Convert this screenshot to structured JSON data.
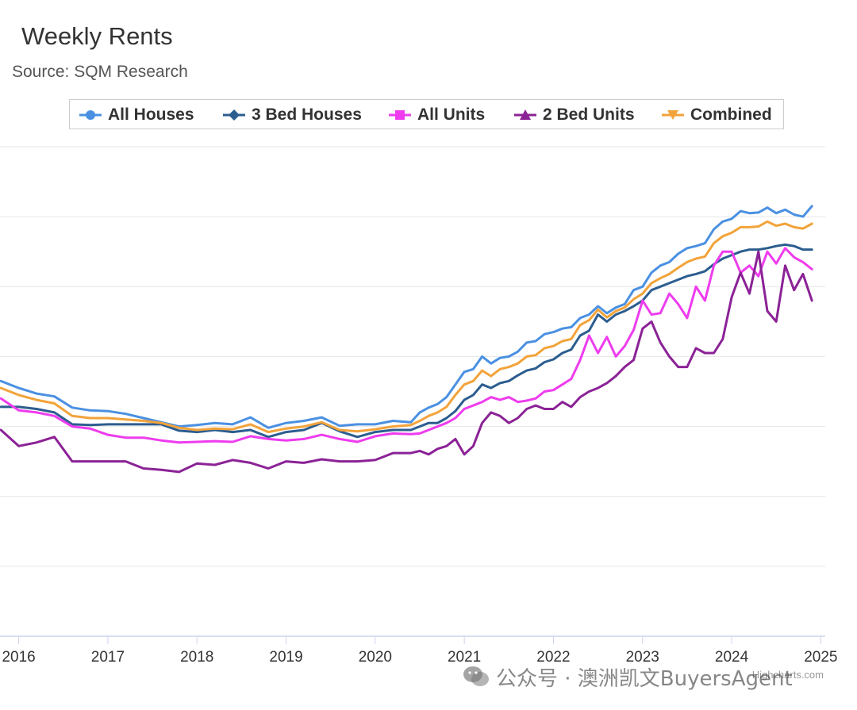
{
  "title": "Weekly Rents",
  "subtitle": "Source: SQM Research",
  "credits": "Highcharts.com",
  "watermark": "公众号 · 澳洲凯文BuyersAgent",
  "chart_data": {
    "type": "line",
    "title": "Weekly Rents",
    "subtitle": "Source: SQM Research",
    "x_ticks": [
      "2016",
      "2017",
      "2018",
      "2019",
      "2020",
      "2021",
      "2022",
      "2023",
      "2024",
      "2025"
    ],
    "x_range": [
      2015.79,
      2025.05
    ],
    "y_range": [
      0,
      7
    ],
    "ytick_count": 8,
    "grid": true,
    "legend_position": "top",
    "series": [
      {
        "name": "All Houses",
        "color": "#4a90e2",
        "marker": "circle",
        "x": [
          2015.8,
          2016.0,
          2016.2,
          2016.4,
          2016.6,
          2016.8,
          2017.0,
          2017.2,
          2017.4,
          2017.6,
          2017.8,
          2018.0,
          2018.2,
          2018.4,
          2018.6,
          2018.8,
          2019.0,
          2019.2,
          2019.4,
          2019.6,
          2019.8,
          2020.0,
          2020.2,
          2020.4,
          2020.5,
          2020.6,
          2020.7,
          2020.8,
          2020.9,
          2021.0,
          2021.1,
          2021.2,
          2021.3,
          2021.4,
          2021.5,
          2021.6,
          2021.7,
          2021.8,
          2021.9,
          2022.0,
          2022.1,
          2022.2,
          2022.3,
          2022.4,
          2022.5,
          2022.6,
          2022.7,
          2022.8,
          2022.9,
          2023.0,
          2023.1,
          2023.2,
          2023.3,
          2023.4,
          2023.5,
          2023.6,
          2023.7,
          2023.8,
          2023.9,
          2024.0,
          2024.1,
          2024.2,
          2024.3,
          2024.4,
          2024.5,
          2024.6,
          2024.7,
          2024.8,
          2024.9
        ],
        "y": [
          3.65,
          3.55,
          3.47,
          3.43,
          3.27,
          3.23,
          3.22,
          3.18,
          3.12,
          3.06,
          3.0,
          3.02,
          3.05,
          3.03,
          3.13,
          2.98,
          3.05,
          3.08,
          3.13,
          3.01,
          3.03,
          3.03,
          3.08,
          3.06,
          3.2,
          3.27,
          3.32,
          3.42,
          3.6,
          3.78,
          3.82,
          4.0,
          3.9,
          3.98,
          4.0,
          4.07,
          4.2,
          4.22,
          4.32,
          4.35,
          4.4,
          4.42,
          4.55,
          4.6,
          4.72,
          4.62,
          4.7,
          4.75,
          4.95,
          5.0,
          5.2,
          5.3,
          5.35,
          5.47,
          5.55,
          5.58,
          5.62,
          5.82,
          5.93,
          5.97,
          6.08,
          6.05,
          6.06,
          6.13,
          6.05,
          6.1,
          6.03,
          6.0,
          6.15
        ]
      },
      {
        "name": "3 Bed Houses",
        "color": "#2c5d8f",
        "marker": "diamond",
        "x": [
          2015.8,
          2016.0,
          2016.2,
          2016.4,
          2016.6,
          2016.8,
          2017.0,
          2017.2,
          2017.4,
          2017.6,
          2017.8,
          2018.0,
          2018.2,
          2018.4,
          2018.6,
          2018.8,
          2019.0,
          2019.2,
          2019.4,
          2019.6,
          2019.8,
          2020.0,
          2020.2,
          2020.4,
          2020.5,
          2020.6,
          2020.7,
          2020.8,
          2020.9,
          2021.0,
          2021.1,
          2021.2,
          2021.3,
          2021.4,
          2021.5,
          2021.6,
          2021.7,
          2021.8,
          2021.9,
          2022.0,
          2022.1,
          2022.2,
          2022.3,
          2022.4,
          2022.5,
          2022.6,
          2022.7,
          2022.8,
          2022.9,
          2023.0,
          2023.1,
          2023.2,
          2023.3,
          2023.4,
          2023.5,
          2023.6,
          2023.7,
          2023.8,
          2023.9,
          2024.0,
          2024.1,
          2024.2,
          2024.3,
          2024.4,
          2024.5,
          2024.6,
          2024.7,
          2024.8,
          2024.9
        ],
        "y": [
          3.28,
          3.28,
          3.25,
          3.2,
          3.03,
          3.02,
          3.03,
          3.03,
          3.03,
          3.03,
          2.94,
          2.92,
          2.95,
          2.92,
          2.95,
          2.85,
          2.92,
          2.95,
          3.05,
          2.93,
          2.85,
          2.92,
          2.95,
          2.95,
          3.0,
          3.05,
          3.05,
          3.12,
          3.22,
          3.38,
          3.45,
          3.6,
          3.55,
          3.62,
          3.65,
          3.73,
          3.8,
          3.83,
          3.92,
          3.96,
          4.05,
          4.1,
          4.3,
          4.37,
          4.6,
          4.5,
          4.6,
          4.65,
          4.72,
          4.8,
          4.95,
          5.0,
          5.05,
          5.1,
          5.15,
          5.18,
          5.22,
          5.32,
          5.4,
          5.45,
          5.5,
          5.53,
          5.53,
          5.55,
          5.58,
          5.6,
          5.58,
          5.53,
          5.53
        ]
      },
      {
        "name": "All Units",
        "color": "#ee3cee",
        "marker": "square",
        "x": [
          2015.8,
          2016.0,
          2016.2,
          2016.4,
          2016.6,
          2016.8,
          2017.0,
          2017.2,
          2017.4,
          2017.6,
          2017.8,
          2018.0,
          2018.2,
          2018.4,
          2018.6,
          2018.8,
          2019.0,
          2019.2,
          2019.4,
          2019.6,
          2019.8,
          2020.0,
          2020.2,
          2020.4,
          2020.5,
          2020.6,
          2020.7,
          2020.8,
          2020.9,
          2021.0,
          2021.1,
          2021.2,
          2021.3,
          2021.4,
          2021.5,
          2021.6,
          2021.7,
          2021.8,
          2021.9,
          2022.0,
          2022.1,
          2022.2,
          2022.3,
          2022.4,
          2022.5,
          2022.6,
          2022.7,
          2022.8,
          2022.9,
          2023.0,
          2023.1,
          2023.2,
          2023.3,
          2023.4,
          2023.5,
          2023.6,
          2023.7,
          2023.8,
          2023.9,
          2024.0,
          2024.1,
          2024.2,
          2024.3,
          2024.4,
          2024.5,
          2024.6,
          2024.7,
          2024.8,
          2024.9
        ],
        "y": [
          3.4,
          3.23,
          3.2,
          3.15,
          3.0,
          2.97,
          2.88,
          2.84,
          2.84,
          2.8,
          2.77,
          2.78,
          2.79,
          2.78,
          2.86,
          2.82,
          2.8,
          2.82,
          2.88,
          2.82,
          2.78,
          2.86,
          2.9,
          2.89,
          2.9,
          2.95,
          3.0,
          3.05,
          3.12,
          3.25,
          3.3,
          3.35,
          3.42,
          3.38,
          3.42,
          3.35,
          3.37,
          3.4,
          3.5,
          3.52,
          3.6,
          3.68,
          3.95,
          4.3,
          4.05,
          4.28,
          4.0,
          4.15,
          4.38,
          4.8,
          4.6,
          4.62,
          4.9,
          4.75,
          4.55,
          5.0,
          4.8,
          5.3,
          5.5,
          5.5,
          5.2,
          5.3,
          5.15,
          5.5,
          5.33,
          5.55,
          5.42,
          5.35,
          5.25
        ]
      },
      {
        "name": "2 Bed Units",
        "color": "#8b2296",
        "marker": "triangle",
        "x": [
          2015.8,
          2016.0,
          2016.2,
          2016.4,
          2016.6,
          2016.8,
          2017.0,
          2017.2,
          2017.4,
          2017.6,
          2017.8,
          2018.0,
          2018.2,
          2018.4,
          2018.6,
          2018.8,
          2019.0,
          2019.2,
          2019.4,
          2019.6,
          2019.8,
          2020.0,
          2020.2,
          2020.4,
          2020.5,
          2020.6,
          2020.7,
          2020.8,
          2020.9,
          2021.0,
          2021.1,
          2021.2,
          2021.3,
          2021.4,
          2021.5,
          2021.6,
          2021.7,
          2021.8,
          2021.9,
          2022.0,
          2022.1,
          2022.2,
          2022.3,
          2022.4,
          2022.5,
          2022.6,
          2022.7,
          2022.8,
          2022.9,
          2023.0,
          2023.1,
          2023.2,
          2023.3,
          2023.4,
          2023.5,
          2023.6,
          2023.7,
          2023.8,
          2023.9,
          2024.0,
          2024.1,
          2024.2,
          2024.3,
          2024.4,
          2024.5,
          2024.6,
          2024.7,
          2024.8,
          2024.9
        ],
        "y": [
          2.95,
          2.72,
          2.77,
          2.85,
          2.5,
          2.5,
          2.5,
          2.5,
          2.4,
          2.38,
          2.35,
          2.47,
          2.45,
          2.52,
          2.48,
          2.4,
          2.5,
          2.48,
          2.53,
          2.5,
          2.5,
          2.52,
          2.62,
          2.62,
          2.65,
          2.6,
          2.68,
          2.72,
          2.82,
          2.6,
          2.72,
          3.05,
          3.2,
          3.15,
          3.05,
          3.12,
          3.25,
          3.3,
          3.25,
          3.25,
          3.35,
          3.28,
          3.42,
          3.5,
          3.55,
          3.62,
          3.72,
          3.85,
          3.95,
          4.4,
          4.5,
          4.2,
          4.0,
          3.85,
          3.85,
          4.12,
          4.05,
          4.05,
          4.25,
          4.85,
          5.2,
          4.9,
          5.5,
          4.65,
          4.5,
          5.3,
          4.95,
          5.18,
          4.8
        ]
      },
      {
        "name": "Combined",
        "color": "#f2a33a",
        "marker": "triangle-down",
        "x": [
          2015.8,
          2016.0,
          2016.2,
          2016.4,
          2016.6,
          2016.8,
          2017.0,
          2017.2,
          2017.4,
          2017.6,
          2017.8,
          2018.0,
          2018.2,
          2018.4,
          2018.6,
          2018.8,
          2019.0,
          2019.2,
          2019.4,
          2019.6,
          2019.8,
          2020.0,
          2020.2,
          2020.4,
          2020.5,
          2020.6,
          2020.7,
          2020.8,
          2020.9,
          2021.0,
          2021.1,
          2021.2,
          2021.3,
          2021.4,
          2021.5,
          2021.6,
          2021.7,
          2021.8,
          2021.9,
          2022.0,
          2022.1,
          2022.2,
          2022.3,
          2022.4,
          2022.5,
          2022.6,
          2022.7,
          2022.8,
          2022.9,
          2023.0,
          2023.1,
          2023.2,
          2023.3,
          2023.4,
          2023.5,
          2023.6,
          2023.7,
          2023.8,
          2023.9,
          2024.0,
          2024.1,
          2024.2,
          2024.3,
          2024.4,
          2024.5,
          2024.6,
          2024.7,
          2024.8,
          2024.9
        ],
        "y": [
          3.55,
          3.45,
          3.38,
          3.33,
          3.15,
          3.12,
          3.12,
          3.1,
          3.08,
          3.05,
          2.98,
          2.95,
          2.97,
          2.96,
          3.03,
          2.92,
          2.97,
          3.0,
          3.06,
          2.95,
          2.93,
          2.96,
          3.0,
          3.02,
          3.08,
          3.15,
          3.2,
          3.28,
          3.45,
          3.6,
          3.65,
          3.8,
          3.72,
          3.82,
          3.85,
          3.9,
          4.0,
          4.02,
          4.12,
          4.15,
          4.22,
          4.25,
          4.45,
          4.52,
          4.67,
          4.56,
          4.65,
          4.7,
          4.82,
          4.9,
          5.05,
          5.12,
          5.18,
          5.27,
          5.35,
          5.4,
          5.43,
          5.62,
          5.72,
          5.77,
          5.85,
          5.85,
          5.86,
          5.93,
          5.87,
          5.9,
          5.85,
          5.83,
          5.9
        ]
      }
    ]
  }
}
